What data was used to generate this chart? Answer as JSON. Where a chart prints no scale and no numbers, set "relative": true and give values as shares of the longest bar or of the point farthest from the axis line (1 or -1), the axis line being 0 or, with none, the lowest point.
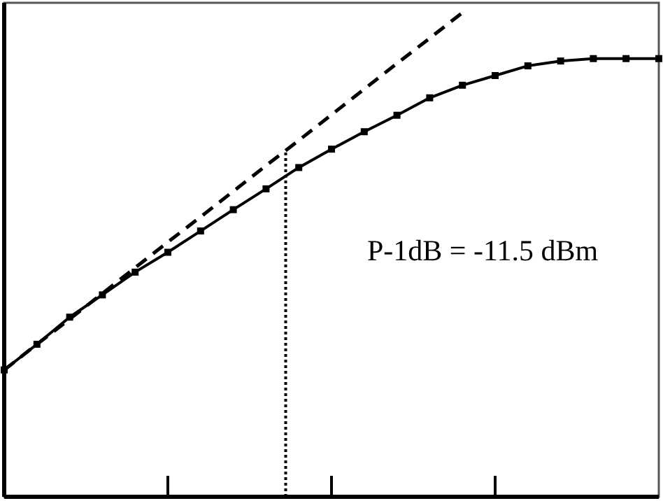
{
  "chart_data": {
    "type": "line",
    "relative": true,
    "categories": [
      null,
      null,
      null,
      null,
      null,
      null,
      null,
      null,
      null,
      null,
      null,
      null,
      null,
      null,
      null,
      null,
      null,
      null,
      null,
      null,
      null
    ],
    "series": [
      {
        "color": "#000000",
        "marker": "square",
        "line_style": "solid",
        "values": [
          0.262,
          0.315,
          0.371,
          0.417,
          0.464,
          0.505,
          0.549,
          0.593,
          0.636,
          0.68,
          0.718,
          0.754,
          0.788,
          0.824,
          0.85,
          0.87,
          0.89,
          0.9,
          0.905,
          0.905,
          0.905
        ]
      },
      {
        "color": "#000000",
        "marker": "none",
        "line_style": "dashed",
        "values": [
          0.262,
          0.315,
          0.367,
          0.42,
          0.473,
          0.526,
          0.578,
          0.631,
          0.684,
          0.736,
          0.789,
          0.842,
          0.895,
          0.947,
          1,
          null,
          null,
          null,
          null,
          null,
          null
        ]
      }
    ],
    "annotations": [
      "P-1dB = -11.5 dBm"
    ]
  }
}
